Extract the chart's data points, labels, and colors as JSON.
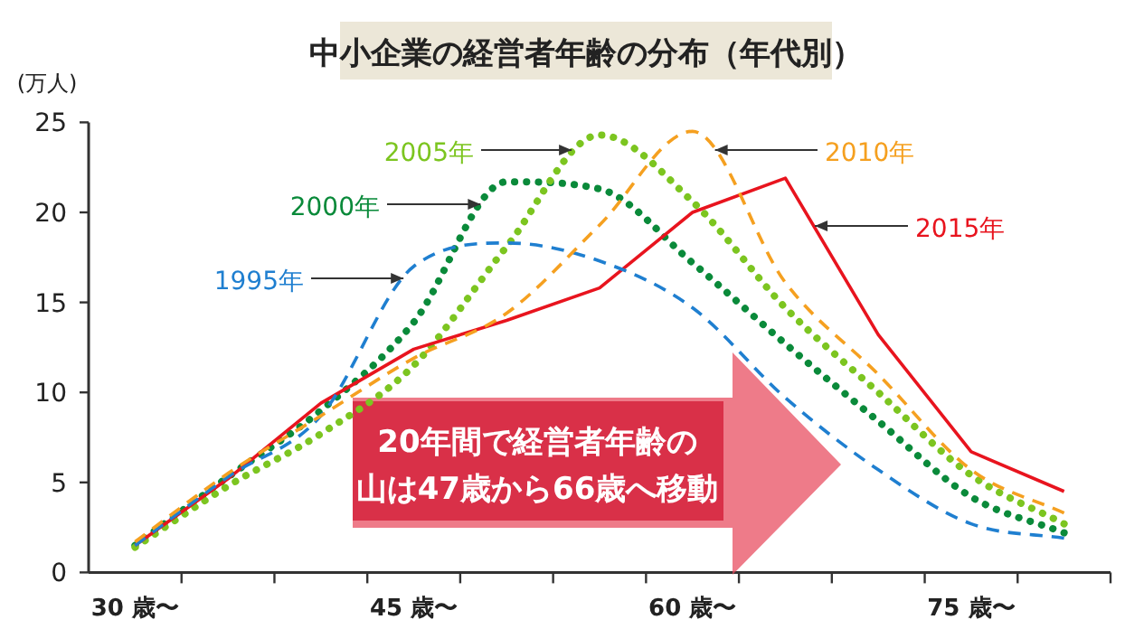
{
  "chart_data": {
    "type": "line",
    "title": "中小企業の経営者年齢の分布（年代別）",
    "ylabel": "(万人)",
    "categories": [
      "30 歳〜",
      null,
      null,
      "45 歳〜",
      null,
      null,
      "60 歳〜",
      null,
      null,
      "75 歳〜",
      null
    ],
    "ylim": [
      0,
      25
    ],
    "yticks": [
      0,
      5,
      10,
      15,
      20,
      25
    ],
    "grid": false,
    "legend": false,
    "marker": "none",
    "series": [
      {
        "name": "1995年",
        "color": "#1f7fd0",
        "line_style": "dashed",
        "values": [
          1.5,
          5.3,
          8.7,
          17.0,
          18.3,
          17.3,
          14.7,
          9.7,
          5.7,
          2.7,
          1.9
        ]
      },
      {
        "name": "2000年",
        "color": "#0a8a3a",
        "line_style": "dotted",
        "values": [
          1.5,
          5.3,
          9.0,
          13.9,
          21.7,
          21.3,
          17.2,
          12.7,
          8.4,
          4.2,
          2.2
        ]
      },
      {
        "name": "2005年",
        "color": "#7cc520",
        "line_style": "dotted",
        "values": [
          1.4,
          4.8,
          7.7,
          11.5,
          18.1,
          24.3,
          20.6,
          14.7,
          10.0,
          5.4,
          2.7
        ]
      },
      {
        "name": "2010年",
        "color": "#f5a020",
        "line_style": "dashed",
        "values": [
          1.7,
          5.5,
          8.7,
          11.9,
          14.4,
          19.3,
          24.5,
          16.1,
          11.0,
          5.7,
          3.3
        ]
      },
      {
        "name": "2015年",
        "color": "#e8141e",
        "line_style": "solid",
        "values": [
          1.5,
          5.2,
          9.4,
          12.4,
          14.0,
          15.8,
          20.0,
          21.9,
          13.2,
          6.7,
          4.5
        ]
      }
    ],
    "annotations": [
      "20年間で経営者年齢の",
      "山は47歳から66歳へ移動"
    ]
  }
}
